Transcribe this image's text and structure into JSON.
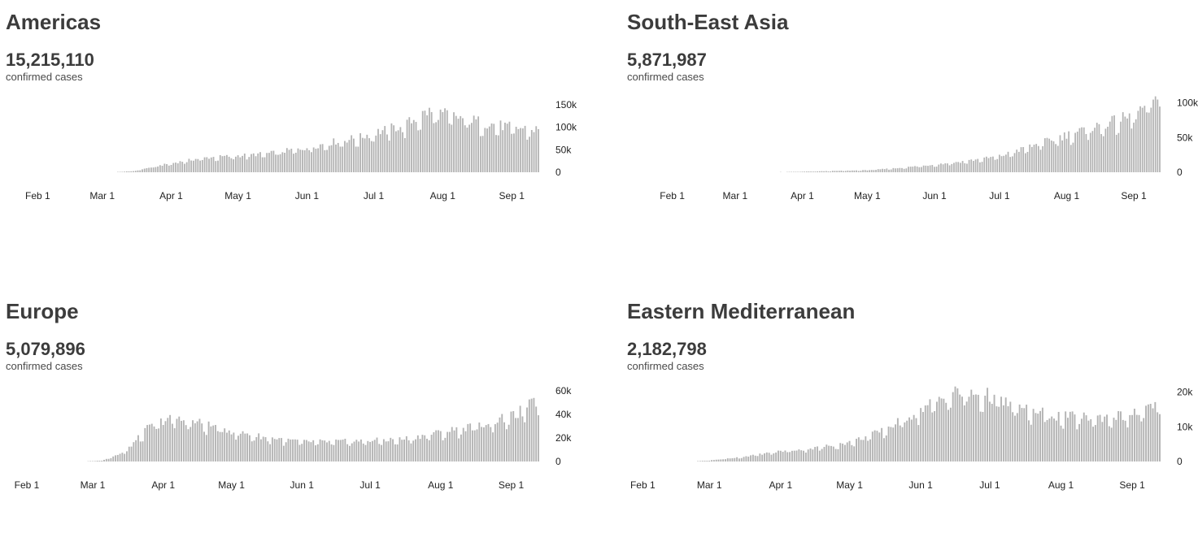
{
  "chart_data": [
    {
      "type": "bar",
      "title": "Americas",
      "total": "15,215,110",
      "total_label": "confirmed cases",
      "x_ticks": [
        "Feb 1",
        "Mar 1",
        "Apr 1",
        "May 1",
        "Jun 1",
        "Jul 1",
        "Aug 1",
        "Sep 1"
      ],
      "y_ticks": [
        "0",
        "50k",
        "100k",
        "150k"
      ],
      "ylim": [
        0,
        170000
      ],
      "color": "#b3b3b3",
      "anchors": [
        [
          "2020-01-22",
          0
        ],
        [
          "2020-03-05",
          0
        ],
        [
          "2020-03-15",
          2500
        ],
        [
          "2020-03-22",
          10000
        ],
        [
          "2020-04-01",
          20000
        ],
        [
          "2020-04-15",
          32000
        ],
        [
          "2020-05-01",
          37000
        ],
        [
          "2020-05-15",
          42000
        ],
        [
          "2020-06-01",
          55000
        ],
        [
          "2020-06-15",
          70000
        ],
        [
          "2020-06-25",
          78000
        ],
        [
          "2020-07-01",
          88000
        ],
        [
          "2020-07-15",
          105000
        ],
        [
          "2020-07-25",
          135000
        ],
        [
          "2020-08-01",
          130000
        ],
        [
          "2020-08-10",
          120000
        ],
        [
          "2020-08-20",
          110000
        ],
        [
          "2020-09-01",
          100000
        ],
        [
          "2020-09-13",
          95000
        ]
      ]
    },
    {
      "type": "bar",
      "title": "South-East Asia",
      "total": "5,871,987",
      "total_label": "confirmed cases",
      "x_ticks": [
        "Feb 1",
        "Mar 1",
        "Apr 1",
        "May 1",
        "Jun 1",
        "Jul 1",
        "Aug 1",
        "Sep 1"
      ],
      "y_ticks": [
        "0",
        "50k",
        "100k"
      ],
      "ylim": [
        0,
        110000
      ],
      "color": "#b3b3b3",
      "anchors": [
        [
          "2020-01-22",
          0
        ],
        [
          "2020-03-15",
          0
        ],
        [
          "2020-04-01",
          800
        ],
        [
          "2020-05-01",
          3000
        ],
        [
          "2020-05-15",
          6000
        ],
        [
          "2020-06-01",
          11000
        ],
        [
          "2020-06-15",
          16000
        ],
        [
          "2020-07-01",
          23000
        ],
        [
          "2020-07-15",
          37000
        ],
        [
          "2020-08-01",
          54000
        ],
        [
          "2020-08-15",
          66000
        ],
        [
          "2020-09-01",
          82000
        ],
        [
          "2020-09-07",
          97000
        ],
        [
          "2020-09-13",
          100000
        ]
      ]
    },
    {
      "type": "bar",
      "title": "Europe",
      "total": "5,079,896",
      "total_label": "confirmed cases",
      "x_ticks": [
        "Feb 1",
        "Mar 1",
        "Apr 1",
        "May 1",
        "Jun 1",
        "Jul 1",
        "Aug 1",
        "Sep 1"
      ],
      "y_ticks": [
        "0",
        "20k",
        "40k",
        "60k"
      ],
      "ylim": [
        0,
        65000
      ],
      "color": "#b3b3b3",
      "anchors": [
        [
          "2020-01-22",
          0
        ],
        [
          "2020-02-25",
          0
        ],
        [
          "2020-03-05",
          800
        ],
        [
          "2020-03-15",
          8000
        ],
        [
          "2020-03-25",
          28000
        ],
        [
          "2020-04-03",
          37000
        ],
        [
          "2020-04-15",
          34000
        ],
        [
          "2020-05-01",
          26000
        ],
        [
          "2020-05-15",
          21000
        ],
        [
          "2020-06-01",
          17000
        ],
        [
          "2020-06-15",
          17000
        ],
        [
          "2020-07-01",
          18000
        ],
        [
          "2020-07-15",
          19000
        ],
        [
          "2020-08-01",
          25000
        ],
        [
          "2020-08-15",
          30000
        ],
        [
          "2020-09-01",
          38000
        ],
        [
          "2020-09-13",
          52000
        ]
      ]
    },
    {
      "type": "bar",
      "title": "Eastern Mediterranean",
      "total": "2,182,798",
      "total_label": "confirmed cases",
      "x_ticks": [
        "Feb 1",
        "Mar 1",
        "Apr 1",
        "May 1",
        "Jun 1",
        "Jul 1",
        "Aug 1",
        "Sep 1"
      ],
      "y_ticks": [
        "0",
        "10k",
        "20k"
      ],
      "ylim": [
        0,
        22000
      ],
      "color": "#b3b3b3",
      "anchors": [
        [
          "2020-01-22",
          0
        ],
        [
          "2020-02-22",
          0
        ],
        [
          "2020-03-01",
          300
        ],
        [
          "2020-03-15",
          1300
        ],
        [
          "2020-04-01",
          3000
        ],
        [
          "2020-04-15",
          3800
        ],
        [
          "2020-05-01",
          5500
        ],
        [
          "2020-05-15",
          8800
        ],
        [
          "2020-06-01",
          15000
        ],
        [
          "2020-06-15",
          20000
        ],
        [
          "2020-07-01",
          19000
        ],
        [
          "2020-07-15",
          15000
        ],
        [
          "2020-08-01",
          13000
        ],
        [
          "2020-08-15",
          12700
        ],
        [
          "2020-09-01",
          13500
        ],
        [
          "2020-09-13",
          16500
        ]
      ]
    }
  ]
}
